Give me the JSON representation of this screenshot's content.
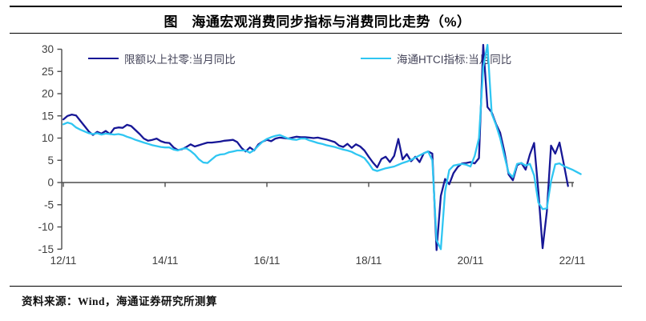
{
  "title": "图　海通宏观消费同步指标与消费同比走势（%）",
  "source_note": "资料来源：Wind，海通证券研究所测算",
  "colors": {
    "series1": "#171796",
    "series2": "#2FC6F2",
    "axis_line": "#4D4D4D",
    "tick_label": "#3E3E3E",
    "legend_text": "#45455A",
    "rule": "#000000"
  },
  "chart_data": {
    "type": "line",
    "title": "图　海通宏观消费同步指标与消费同比走势（%）",
    "xlabel": "",
    "ylabel": "",
    "ylim": [
      -15,
      30
    ],
    "y_ticks": [
      30,
      25,
      20,
      15,
      10,
      5,
      0,
      -5,
      -10,
      -15
    ],
    "x_tick_labels": [
      "12/11",
      "14/11",
      "16/11",
      "18/11",
      "20/11",
      "22/11"
    ],
    "x_start_month": "2012-11",
    "x_frequency": "monthly",
    "grid": false,
    "legend_position": "top-inside",
    "series": [
      {
        "name": "限额以上社零:当月同比",
        "color": "#171796",
        "values": [
          14.2,
          15.0,
          15.3,
          15.1,
          13.9,
          12.7,
          11.5,
          10.7,
          11.4,
          11.0,
          11.6,
          10.9,
          12.2,
          12.4,
          12.3,
          13.0,
          12.7,
          11.8,
          10.9,
          9.9,
          9.4,
          9.6,
          9.9,
          9.3,
          9.0,
          8.9,
          7.9,
          7.3,
          7.5,
          8.0,
          8.6,
          8.1,
          8.4,
          8.7,
          9.0,
          9.0,
          9.1,
          9.2,
          9.4,
          9.5,
          9.6,
          9.1,
          7.8,
          7.0,
          7.9,
          7.2,
          8.6,
          9.2,
          9.6,
          9.3,
          9.9,
          10.1,
          10.0,
          9.9,
          10.1,
          10.3,
          10.2,
          10.2,
          10.1,
          10.0,
          10.1,
          9.9,
          9.7,
          9.4,
          9.1,
          8.3,
          8.0,
          8.7,
          7.8,
          8.6,
          8.1,
          7.2,
          5.8,
          4.5,
          3.4,
          5.3,
          5.8,
          4.6,
          6.0,
          9.8,
          5.2,
          6.4,
          4.8,
          5.8,
          4.6,
          6.6,
          7.0,
          6.5,
          -15.2,
          -3.0,
          0.8,
          -0.4,
          2.1,
          3.5,
          4.3,
          4.4,
          4.6,
          4.3,
          5.5,
          31.0,
          17.0,
          15.8,
          13.2,
          11.2,
          7.0,
          1.8,
          0.5,
          3.9,
          4.4,
          2.9,
          6.3,
          8.9,
          -2.0,
          -14.8,
          -6.5,
          8.3,
          6.5,
          9.0,
          4.2,
          -0.8
        ]
      },
      {
        "name": "海通HTCI指标:当月同比",
        "color": "#2FC6F2",
        "values": [
          13.1,
          13.5,
          13.2,
          12.4,
          11.9,
          11.5,
          11.1,
          10.9,
          11.1,
          10.8,
          11.0,
          10.9,
          10.8,
          10.9,
          10.7,
          10.3,
          10.0,
          9.6,
          9.3,
          9.0,
          8.7,
          8.4,
          8.2,
          8.0,
          7.9,
          7.9,
          7.4,
          7.2,
          7.6,
          7.7,
          7.1,
          6.3,
          5.2,
          4.5,
          4.4,
          5.2,
          6.0,
          6.3,
          6.4,
          6.8,
          7.0,
          7.2,
          7.2,
          7.2,
          6.7,
          7.3,
          8.3,
          9.2,
          9.8,
          10.2,
          10.5,
          10.7,
          10.3,
          9.9,
          9.7,
          9.6,
          9.9,
          9.9,
          9.5,
          9.2,
          8.9,
          8.7,
          8.4,
          8.2,
          8.0,
          7.7,
          7.4,
          7.2,
          6.9,
          6.4,
          6.0,
          5.5,
          4.3,
          2.9,
          2.6,
          2.9,
          3.2,
          3.4,
          3.6,
          4.0,
          4.4,
          4.7,
          5.1,
          5.6,
          6.1,
          6.6,
          7.0,
          5.0,
          -13.0,
          -15.0,
          -2.0,
          2.8,
          3.8,
          4.0,
          4.2,
          4.0,
          3.6,
          6.0,
          10.0,
          26.0,
          31.0,
          15.5,
          13.0,
          10.0,
          6.0,
          2.2,
          1.2,
          4.2,
          4.4,
          3.8,
          4.2,
          1.6,
          -4.5,
          -6.0,
          -5.8,
          0.3,
          4.1,
          4.3,
          3.7,
          3.3,
          2.9,
          2.4,
          1.9
        ]
      }
    ]
  }
}
